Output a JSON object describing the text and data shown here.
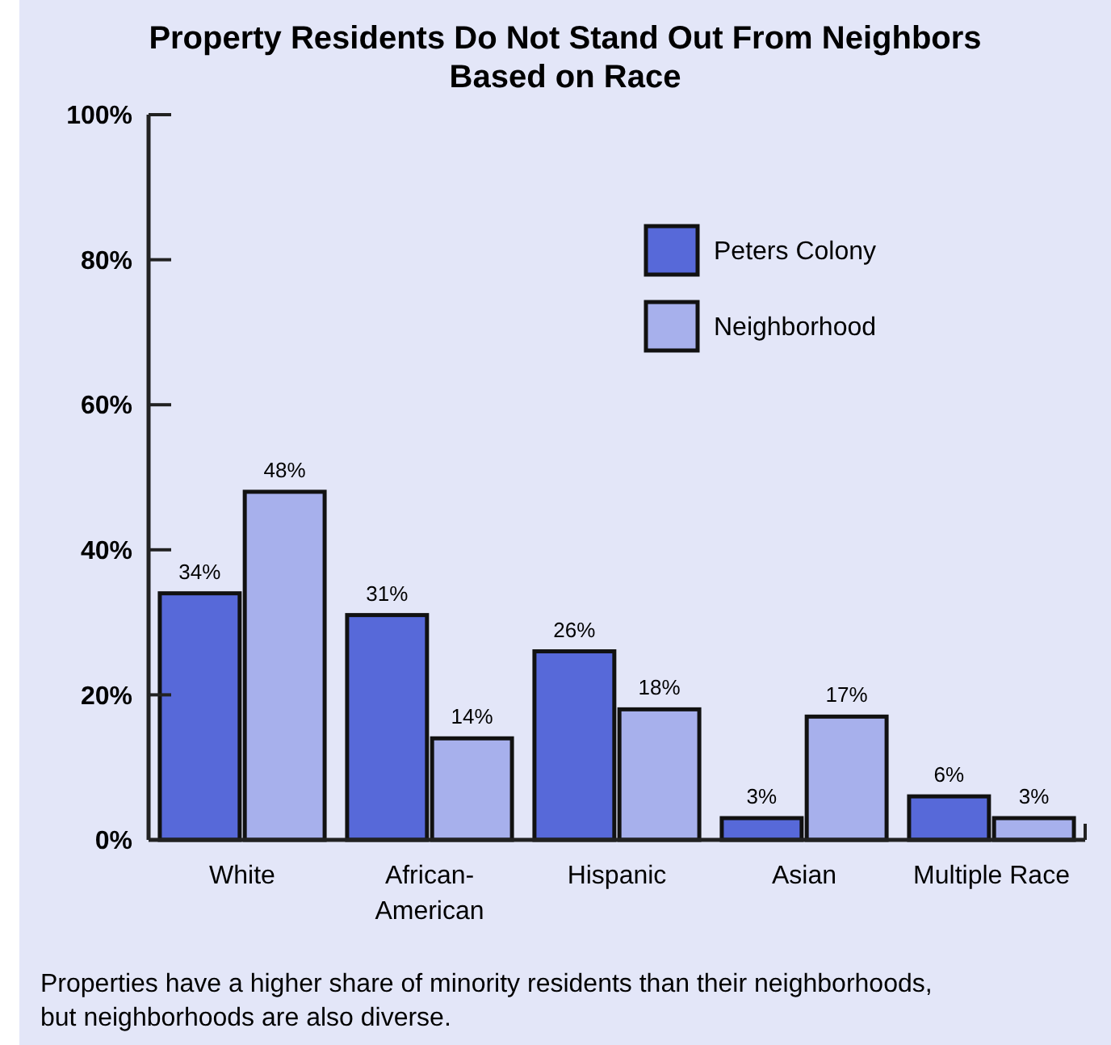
{
  "chart_data": {
    "type": "bar",
    "title": "Property Residents Do Not Stand Out From Neighbors Based on Race",
    "categories": [
      "White",
      "African-American",
      "Hispanic",
      "Asian",
      "Multiple Race"
    ],
    "series": [
      {
        "name": "Peters Colony",
        "color": "#5769d9",
        "values": [
          34,
          31,
          26,
          3,
          6
        ],
        "value_labels": [
          "34%",
          "31%",
          "26%",
          "3%",
          "6%"
        ]
      },
      {
        "name": "Neighborhood",
        "color": "#a7b0ec",
        "values": [
          48,
          14,
          18,
          17,
          3
        ],
        "value_labels": [
          "48%",
          "14%",
          "18%",
          "17%",
          "3%"
        ]
      }
    ],
    "ylim": [
      0,
      100
    ],
    "yticks": [
      {
        "value": 0,
        "label": "0%"
      },
      {
        "value": 20,
        "label": "20%"
      },
      {
        "value": 40,
        "label": "40%"
      },
      {
        "value": 60,
        "label": "60%"
      },
      {
        "value": 80,
        "label": "80%"
      },
      {
        "value": 100,
        "label": "100%"
      }
    ],
    "grid": false,
    "legend": "top right",
    "annotations": [
      "Properties have a higher share of minority residents than their neighborhoods, but neighborhoods are also diverse."
    ]
  }
}
